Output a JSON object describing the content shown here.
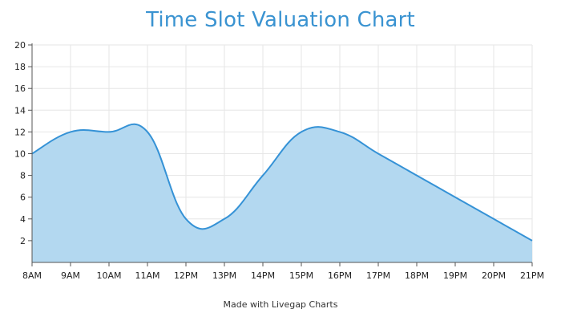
{
  "chart_data": {
    "type": "area",
    "title": "Time Slot Valuation Chart",
    "x": [
      "8AM",
      "9AM",
      "10AM",
      "11AM",
      "12PM",
      "13PM",
      "14PM",
      "15PM",
      "16PM",
      "17PM",
      "18PM",
      "19PM",
      "20PM",
      "21PM"
    ],
    "series": [
      {
        "values": [
          10,
          12,
          12,
          12,
          4,
          4,
          8,
          12,
          12,
          10,
          8,
          6,
          4,
          2
        ]
      }
    ],
    "ylim": [
      0,
      20
    ],
    "yticks": [
      2,
      4,
      6,
      8,
      10,
      12,
      14,
      16,
      18,
      20
    ],
    "grid": true,
    "colors": {
      "line": "#3592d6",
      "fill": "#b3d8f0",
      "title": "#3a93d1",
      "grid": "#e6e6e6",
      "axis": "#555555"
    }
  },
  "footer": {
    "credit": "Made with Livegap Charts"
  }
}
